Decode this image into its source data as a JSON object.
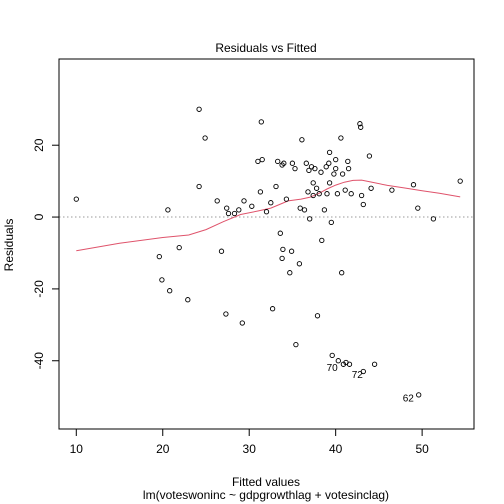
{
  "chart_data": {
    "type": "scatter",
    "title": "Residuals vs Fitted",
    "xlabel": "Fitted values",
    "xlabel2": "lm(voteswoninc ~ gdpgrowthlag + votesinclag)",
    "ylabel": "Residuals",
    "xlim": [
      8,
      56
    ],
    "ylim": [
      -59,
      44
    ],
    "xticks": [
      10,
      20,
      30,
      40,
      50
    ],
    "yticks": [
      -40,
      -20,
      0,
      20
    ],
    "reference_line": {
      "y": 0,
      "style": "dotted",
      "color": "#999999"
    },
    "point_color": "#000000",
    "smooth_color": "#DF536B",
    "points": [
      {
        "x": 10.0,
        "y": 5.0
      },
      {
        "x": 19.6,
        "y": -11.0
      },
      {
        "x": 19.9,
        "y": -17.5
      },
      {
        "x": 20.6,
        "y": 2.0
      },
      {
        "x": 20.8,
        "y": -20.5
      },
      {
        "x": 21.9,
        "y": -8.5
      },
      {
        "x": 22.9,
        "y": -23.0
      },
      {
        "x": 24.2,
        "y": 30.0
      },
      {
        "x": 24.2,
        "y": 8.5
      },
      {
        "x": 24.9,
        "y": 22.0
      },
      {
        "x": 26.3,
        "y": 4.5
      },
      {
        "x": 26.8,
        "y": -9.5
      },
      {
        "x": 27.3,
        "y": -27.0
      },
      {
        "x": 27.4,
        "y": 2.5
      },
      {
        "x": 27.6,
        "y": 1.0
      },
      {
        "x": 28.3,
        "y": 1.0
      },
      {
        "x": 28.8,
        "y": 2.0
      },
      {
        "x": 29.2,
        "y": -29.5
      },
      {
        "x": 29.4,
        "y": 4.5
      },
      {
        "x": 30.3,
        "y": 3.0
      },
      {
        "x": 31.0,
        "y": 15.5
      },
      {
        "x": 31.3,
        "y": 7.0
      },
      {
        "x": 31.4,
        "y": 26.5
      },
      {
        "x": 31.5,
        "y": 16.0
      },
      {
        "x": 32.0,
        "y": 1.5
      },
      {
        "x": 32.5,
        "y": 4.0
      },
      {
        "x": 32.7,
        "y": -25.5
      },
      {
        "x": 33.1,
        "y": 8.5
      },
      {
        "x": 33.3,
        "y": 15.5
      },
      {
        "x": 33.6,
        "y": -4.5
      },
      {
        "x": 33.8,
        "y": 14.5
      },
      {
        "x": 33.8,
        "y": -11.5
      },
      {
        "x": 33.9,
        "y": -9.0
      },
      {
        "x": 34.0,
        "y": 15.0
      },
      {
        "x": 34.3,
        "y": 5.0
      },
      {
        "x": 34.7,
        "y": -15.5
      },
      {
        "x": 34.9,
        "y": -9.5
      },
      {
        "x": 35.0,
        "y": 15.0
      },
      {
        "x": 35.3,
        "y": 13.5
      },
      {
        "x": 35.4,
        "y": -35.5
      },
      {
        "x": 35.8,
        "y": -13.0
      },
      {
        "x": 35.9,
        "y": 2.5
      },
      {
        "x": 36.1,
        "y": 21.5
      },
      {
        "x": 36.4,
        "y": 2.0
      },
      {
        "x": 36.6,
        "y": 15.0
      },
      {
        "x": 36.8,
        "y": 7.0
      },
      {
        "x": 36.9,
        "y": 13.0
      },
      {
        "x": 37.0,
        "y": -0.5
      },
      {
        "x": 37.2,
        "y": 14.0
      },
      {
        "x": 37.4,
        "y": 9.5
      },
      {
        "x": 37.4,
        "y": 6.0
      },
      {
        "x": 37.6,
        "y": 13.5
      },
      {
        "x": 37.8,
        "y": 8.0
      },
      {
        "x": 37.9,
        "y": -27.5
      },
      {
        "x": 38.1,
        "y": 6.5
      },
      {
        "x": 38.3,
        "y": 12.5
      },
      {
        "x": 38.4,
        "y": -6.5
      },
      {
        "x": 38.7,
        "y": 2.0
      },
      {
        "x": 38.9,
        "y": 14.0
      },
      {
        "x": 39.0,
        "y": 6.5
      },
      {
        "x": 39.2,
        "y": 15.0
      },
      {
        "x": 39.3,
        "y": 18.0
      },
      {
        "x": 39.3,
        "y": 9.5
      },
      {
        "x": 39.5,
        "y": -1.5
      },
      {
        "x": 39.6,
        "y": -38.5
      },
      {
        "x": 39.8,
        "y": 12.0
      },
      {
        "x": 40.0,
        "y": 13.5
      },
      {
        "x": 40.0,
        "y": 16.0
      },
      {
        "x": 40.2,
        "y": 6.5
      },
      {
        "x": 40.3,
        "y": -40.0
      },
      {
        "x": 40.6,
        "y": 22.0
      },
      {
        "x": 40.7,
        "y": -15.5
      },
      {
        "x": 40.8,
        "y": 12.0
      },
      {
        "x": 40.9,
        "y": -41.0
      },
      {
        "x": 41.1,
        "y": 7.5
      },
      {
        "x": 41.2,
        "y": -40.5
      },
      {
        "x": 41.4,
        "y": 15.5
      },
      {
        "x": 41.5,
        "y": 13.5
      },
      {
        "x": 41.6,
        "y": -41.0
      },
      {
        "x": 41.8,
        "y": 6.5
      },
      {
        "x": 42.8,
        "y": 26.0
      },
      {
        "x": 42.9,
        "y": 25.0
      },
      {
        "x": 43.0,
        "y": 6.0
      },
      {
        "x": 43.2,
        "y": 3.5
      },
      {
        "x": 43.2,
        "y": -43.0
      },
      {
        "x": 43.9,
        "y": 17.0
      },
      {
        "x": 44.1,
        "y": 8.0
      },
      {
        "x": 44.5,
        "y": -41.0
      },
      {
        "x": 46.5,
        "y": 7.5
      },
      {
        "x": 49.0,
        "y": 9.0
      },
      {
        "x": 49.5,
        "y": 2.5
      },
      {
        "x": 49.6,
        "y": -49.5
      },
      {
        "x": 51.3,
        "y": -0.5
      },
      {
        "x": 54.4,
        "y": 10.0
      }
    ],
    "labels": [
      {
        "text": "70",
        "x": 39.6,
        "y": -42.0,
        "anchor": "middle"
      },
      {
        "text": "72",
        "x": 42.5,
        "y": -44.0,
        "anchor": "middle"
      },
      {
        "text": "62",
        "x": 48.4,
        "y": -50.5,
        "anchor": "middle"
      }
    ],
    "smooth": [
      [
        10.0,
        -9.4
      ],
      [
        15.0,
        -7.3
      ],
      [
        20.0,
        -5.7
      ],
      [
        23.0,
        -5.0
      ],
      [
        25.0,
        -3.5
      ],
      [
        27.0,
        -1.3
      ],
      [
        29.0,
        0.7
      ],
      [
        31.0,
        1.7
      ],
      [
        32.5,
        2.5
      ],
      [
        33.5,
        3.5
      ],
      [
        34.5,
        4.5
      ],
      [
        36.0,
        5.0
      ],
      [
        37.0,
        5.5
      ],
      [
        38.0,
        6.5
      ],
      [
        39.0,
        7.8
      ],
      [
        40.0,
        8.9
      ],
      [
        41.0,
        9.7
      ],
      [
        42.0,
        10.2
      ],
      [
        43.0,
        10.3
      ],
      [
        44.0,
        9.8
      ],
      [
        46.0,
        8.8
      ],
      [
        48.0,
        8.1
      ],
      [
        50.0,
        7.3
      ],
      [
        52.0,
        6.6
      ],
      [
        54.4,
        5.6
      ]
    ]
  }
}
